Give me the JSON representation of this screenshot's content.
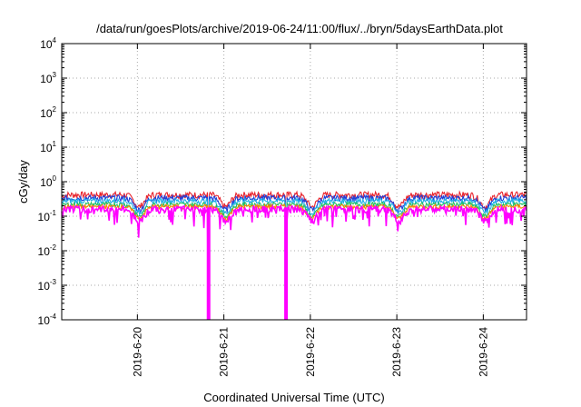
{
  "chart_data": {
    "type": "line",
    "title": "/data/run/goesPlots/archive/2019-06-24/11:00/flux/../bryn/5daysEarthData.plot",
    "xlabel": "Coordinated Universal Time (UTC)",
    "ylabel": "cGy/day",
    "yscale": "log",
    "ylim": [
      0.0001,
      10000
    ],
    "xlim": [
      "2019-06-19T03:00",
      "2019-06-24T12:00"
    ],
    "grid": true,
    "legend": "none",
    "y_ticks": [
      {
        "value": 0.0001,
        "label_base": "10",
        "label_exp": "-4"
      },
      {
        "value": 0.001,
        "label_base": "10",
        "label_exp": "-3"
      },
      {
        "value": 0.01,
        "label_base": "10",
        "label_exp": "-2"
      },
      {
        "value": 0.1,
        "label_base": "10",
        "label_exp": "-1"
      },
      {
        "value": 1,
        "label_base": "10",
        "label_exp": "0"
      },
      {
        "value": 10,
        "label_base": "10",
        "label_exp": "1"
      },
      {
        "value": 100,
        "label_base": "10",
        "label_exp": "2"
      },
      {
        "value": 1000,
        "label_base": "10",
        "label_exp": "3"
      },
      {
        "value": 10000,
        "label_base": "10",
        "label_exp": "4"
      }
    ],
    "x_ticks": [
      {
        "value": "2019-06-20T00:00",
        "label": "2019-6-20"
      },
      {
        "value": "2019-06-21T00:00",
        "label": "2019-6-21"
      },
      {
        "value": "2019-06-22T00:00",
        "label": "2019-6-22"
      },
      {
        "value": "2019-06-23T00:00",
        "label": "2019-6-23"
      },
      {
        "value": "2019-06-24T00:00",
        "label": "2019-6-24"
      }
    ],
    "series": [
      {
        "color": "#e8202a",
        "level": 0.42,
        "amp": 0.22
      },
      {
        "color": "#1f3fd8",
        "level": 0.34,
        "amp": 0.2
      },
      {
        "color": "#20b0e8",
        "level": 0.28,
        "amp": 0.18
      },
      {
        "color": "#20c060",
        "level": 0.22,
        "amp": 0.16
      },
      {
        "color": "#ff8000",
        "level": 0.19,
        "amp": 0.15
      },
      {
        "color": "#ff00ff",
        "level": 0.16,
        "amp": 0.22
      }
    ],
    "dropouts": [
      {
        "start": "2019-06-20T19:40",
        "end": "2019-06-20T19:50",
        "value": 0.0001
      },
      {
        "start": "2019-06-21T17:10",
        "end": "2019-06-21T17:20",
        "value": 0.0001
      }
    ]
  }
}
